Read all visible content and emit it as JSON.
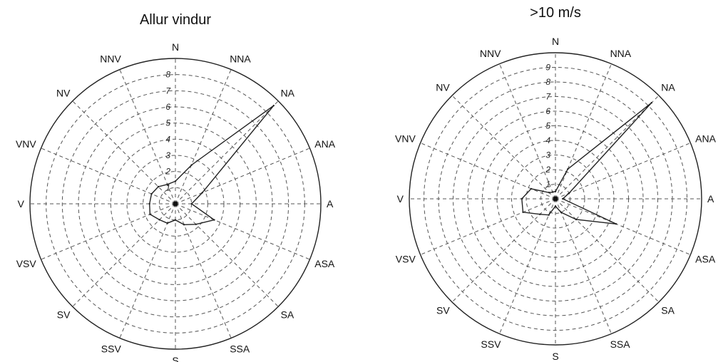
{
  "chart_data": [
    {
      "type": "radar",
      "title": "Allur vindur",
      "directions": [
        "N",
        "NNA",
        "NA",
        "ANA",
        "A",
        "ASA",
        "SA",
        "SSA",
        "S",
        "SSV",
        "SV",
        "VSV",
        "V",
        "VNV",
        "NV",
        "NNV"
      ],
      "r_ticks": [
        "1",
        "2",
        "3",
        "4",
        "5",
        "6",
        "7",
        "8"
      ],
      "r_max": 9,
      "grid": true,
      "values": [
        1.4,
        2.6,
        8.6,
        1.8,
        1.0,
        2.6,
        1.8,
        1.4,
        1.0,
        1.3,
        1.4,
        1.7,
        1.6,
        1.6,
        1.5,
        1.3
      ]
    },
    {
      "type": "radar",
      "title": ">10 m/s",
      "directions": [
        "N",
        "NNA",
        "NA",
        "ANA",
        "A",
        "ASA",
        "SA",
        "SSA",
        "S",
        "SSV",
        "SV",
        "VSV",
        "V",
        "VNV",
        "NV",
        "NNV"
      ],
      "r_ticks": [
        "1",
        "2",
        "3",
        "4",
        "5",
        "6",
        "7",
        "8",
        "9"
      ],
      "r_max": 10,
      "grid": true,
      "values": [
        0.5,
        2.2,
        9.3,
        1.0,
        0.5,
        4.5,
        2.0,
        1.0,
        0.5,
        1.2,
        1.5,
        2.4,
        2.3,
        1.8,
        0.6,
        0.5
      ]
    }
  ]
}
